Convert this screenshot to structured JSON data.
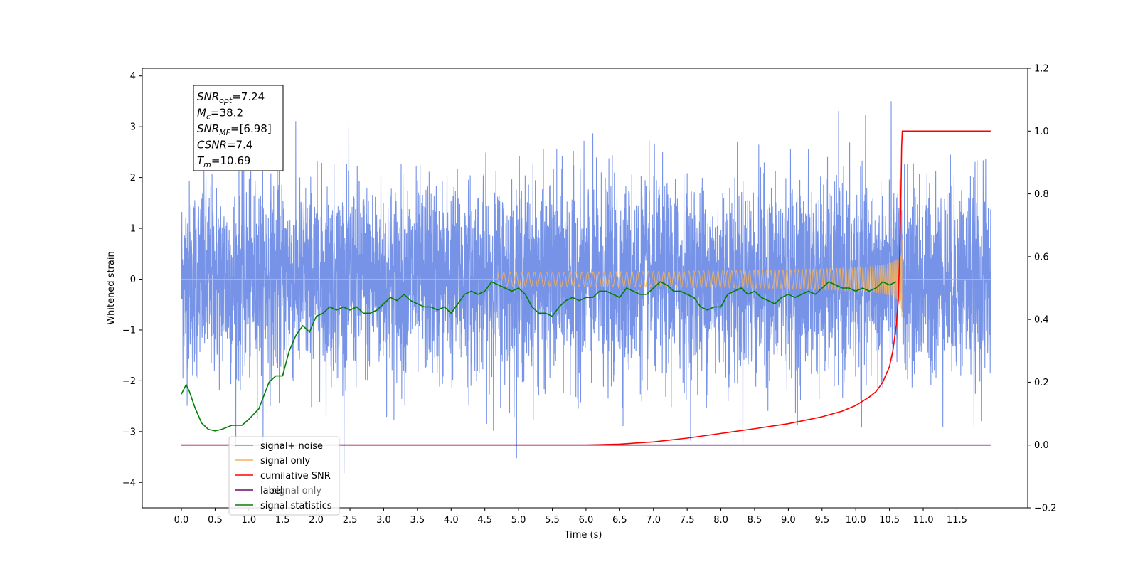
{
  "chart_data": {
    "type": "line",
    "xlabel": "Time (s)",
    "ylabel": "Whitened strain",
    "xlim": [
      -0.58,
      12.55
    ],
    "ylim_left": [
      -4.5,
      4.15
    ],
    "ylim_right": [
      -0.2,
      1.2
    ],
    "x_ticks": [
      "0.0",
      "0.5",
      "1.0",
      "1.5",
      "2.0",
      "2.5",
      "3.0",
      "3.5",
      "4.0",
      "4.5",
      "5.0",
      "5.5",
      "6.0",
      "6.5",
      "7.0",
      "7.5",
      "8.0",
      "8.5",
      "9.0",
      "9.5",
      "10.0",
      "10.5",
      "11.0",
      "11.5"
    ],
    "y_left_ticks": [
      "4",
      "3",
      "2",
      "1",
      "0",
      "−1",
      "−2",
      "−3",
      "−4"
    ],
    "y_right_ticks": [
      "1.2",
      "1.0",
      "0.8",
      "0.6",
      "0.4",
      "0.2",
      "0.0",
      "−0.2"
    ],
    "grid": false,
    "legend_position": "bottom-left",
    "legend_overlay_text": "signal only",
    "series": [
      {
        "name": "signal+ noise",
        "color": "#6f8de6",
        "axis": "left",
        "x_range": [
          0,
          12
        ],
        "noise_std": 1.0,
        "min": -4.1,
        "max": 3.75
      },
      {
        "name": "signal only",
        "color": "#f5b25a",
        "axis": "left",
        "chirp_merger_time": 10.69,
        "peak_amplitude": 0.85
      },
      {
        "name": "cumilative SNR",
        "color": "#ff0000",
        "axis": "right",
        "points": [
          [
            0,
            0
          ],
          [
            6.0,
            0.0
          ],
          [
            6.5,
            0.003
          ],
          [
            7.0,
            0.01
          ],
          [
            7.5,
            0.022
          ],
          [
            8.0,
            0.037
          ],
          [
            8.5,
            0.052
          ],
          [
            9.0,
            0.068
          ],
          [
            9.5,
            0.09
          ],
          [
            9.8,
            0.108
          ],
          [
            10.0,
            0.126
          ],
          [
            10.2,
            0.153
          ],
          [
            10.3,
            0.17
          ],
          [
            10.4,
            0.2
          ],
          [
            10.5,
            0.25
          ],
          [
            10.55,
            0.3
          ],
          [
            10.6,
            0.38
          ],
          [
            10.63,
            0.46
          ],
          [
            10.65,
            0.6
          ],
          [
            10.67,
            0.8
          ],
          [
            10.68,
            0.95
          ],
          [
            10.69,
            1.0
          ],
          [
            12.0,
            1.0
          ]
        ]
      },
      {
        "name": "label",
        "color": "#6a0a6f",
        "axis": "right",
        "points": [
          [
            0,
            0.0
          ],
          [
            12.0,
            0.0
          ]
        ]
      },
      {
        "name": "signal statistics",
        "color": "#008000",
        "axis": "right",
        "points": [
          [
            0.0,
            0.162
          ],
          [
            0.07,
            0.192
          ],
          [
            0.12,
            0.17
          ],
          [
            0.2,
            0.12
          ],
          [
            0.3,
            0.07
          ],
          [
            0.4,
            0.05
          ],
          [
            0.5,
            0.045
          ],
          [
            0.6,
            0.05
          ],
          [
            0.75,
            0.063
          ],
          [
            0.9,
            0.063
          ],
          [
            1.0,
            0.082
          ],
          [
            1.15,
            0.116
          ],
          [
            1.3,
            0.2
          ],
          [
            1.4,
            0.22
          ],
          [
            1.5,
            0.22
          ],
          [
            1.6,
            0.3
          ],
          [
            1.7,
            0.35
          ],
          [
            1.8,
            0.38
          ],
          [
            1.9,
            0.36
          ],
          [
            2.0,
            0.41
          ],
          [
            2.1,
            0.42
          ],
          [
            2.2,
            0.44
          ],
          [
            2.3,
            0.43
          ],
          [
            2.4,
            0.44
          ],
          [
            2.5,
            0.43
          ],
          [
            2.6,
            0.44
          ],
          [
            2.7,
            0.42
          ],
          [
            2.8,
            0.42
          ],
          [
            2.9,
            0.43
          ],
          [
            3.0,
            0.45
          ],
          [
            3.1,
            0.47
          ],
          [
            3.2,
            0.46
          ],
          [
            3.3,
            0.48
          ],
          [
            3.4,
            0.46
          ],
          [
            3.5,
            0.45
          ],
          [
            3.6,
            0.44
          ],
          [
            3.7,
            0.44
          ],
          [
            3.8,
            0.43
          ],
          [
            3.9,
            0.44
          ],
          [
            4.0,
            0.42
          ],
          [
            4.1,
            0.45
          ],
          [
            4.2,
            0.48
          ],
          [
            4.3,
            0.49
          ],
          [
            4.4,
            0.48
          ],
          [
            4.5,
            0.49
          ],
          [
            4.6,
            0.52
          ],
          [
            4.7,
            0.51
          ],
          [
            4.8,
            0.5
          ],
          [
            4.9,
            0.49
          ],
          [
            5.0,
            0.5
          ],
          [
            5.1,
            0.48
          ],
          [
            5.2,
            0.44
          ],
          [
            5.3,
            0.42
          ],
          [
            5.4,
            0.42
          ],
          [
            5.5,
            0.41
          ],
          [
            5.6,
            0.44
          ],
          [
            5.7,
            0.46
          ],
          [
            5.8,
            0.47
          ],
          [
            5.9,
            0.46
          ],
          [
            6.0,
            0.47
          ],
          [
            6.1,
            0.47
          ],
          [
            6.2,
            0.49
          ],
          [
            6.3,
            0.49
          ],
          [
            6.4,
            0.48
          ],
          [
            6.5,
            0.47
          ],
          [
            6.6,
            0.5
          ],
          [
            6.7,
            0.49
          ],
          [
            6.8,
            0.48
          ],
          [
            6.9,
            0.48
          ],
          [
            7.0,
            0.5
          ],
          [
            7.1,
            0.52
          ],
          [
            7.2,
            0.51
          ],
          [
            7.3,
            0.49
          ],
          [
            7.4,
            0.49
          ],
          [
            7.5,
            0.48
          ],
          [
            7.6,
            0.47
          ],
          [
            7.7,
            0.44
          ],
          [
            7.8,
            0.43
          ],
          [
            7.9,
            0.44
          ],
          [
            8.0,
            0.44
          ],
          [
            8.1,
            0.48
          ],
          [
            8.2,
            0.49
          ],
          [
            8.3,
            0.5
          ],
          [
            8.4,
            0.48
          ],
          [
            8.5,
            0.49
          ],
          [
            8.6,
            0.47
          ],
          [
            8.7,
            0.46
          ],
          [
            8.8,
            0.45
          ],
          [
            8.9,
            0.47
          ],
          [
            9.0,
            0.48
          ],
          [
            9.1,
            0.47
          ],
          [
            9.2,
            0.48
          ],
          [
            9.3,
            0.49
          ],
          [
            9.4,
            0.48
          ],
          [
            9.5,
            0.5
          ],
          [
            9.6,
            0.52
          ],
          [
            9.7,
            0.51
          ],
          [
            9.8,
            0.5
          ],
          [
            9.9,
            0.5
          ],
          [
            10.0,
            0.49
          ],
          [
            10.1,
            0.5
          ],
          [
            10.2,
            0.49
          ],
          [
            10.3,
            0.5
          ],
          [
            10.4,
            0.52
          ],
          [
            10.5,
            0.51
          ],
          [
            10.6,
            0.52
          ]
        ]
      }
    ]
  },
  "annotation": {
    "lines": [
      {
        "sym": "SNR",
        "sub": "opt",
        "value": "=7.24"
      },
      {
        "sym": "M",
        "sub": "c",
        "value": "=38.2"
      },
      {
        "sym": "SNR",
        "sub": "MF",
        "value": "=[6.98]"
      },
      {
        "sym": "CSNR",
        "sub": "",
        "value": "=7.4"
      },
      {
        "sym": "T",
        "sub": "m",
        "value": "=10.69"
      }
    ]
  }
}
